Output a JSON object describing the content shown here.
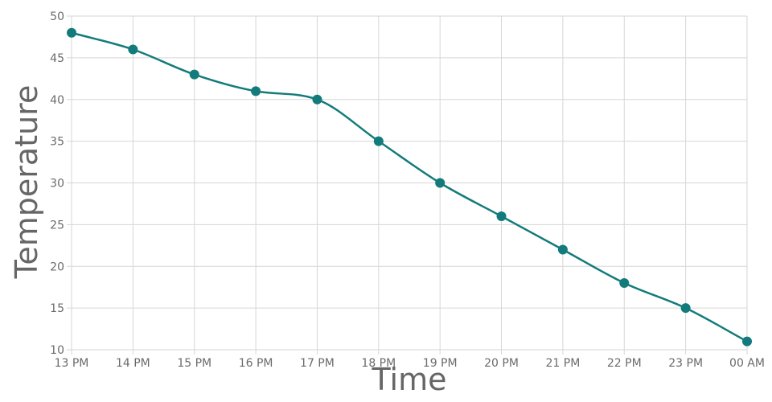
{
  "chart_data": {
    "type": "line",
    "title": "",
    "xlabel": "Time",
    "ylabel": "Temperature",
    "categories": [
      "13 PM",
      "14 PM",
      "15 PM",
      "16 PM",
      "17 PM",
      "18 PM",
      "19 PM",
      "20 PM",
      "21 PM",
      "22 PM",
      "23 PM",
      "00 AM"
    ],
    "series": [
      {
        "values": [
          48,
          46,
          43,
          41,
          40,
          35,
          30,
          26,
          22,
          18,
          15,
          11
        ],
        "color": "#137b7b"
      }
    ],
    "ylim": [
      10,
      50
    ],
    "yticks": [
      10,
      15,
      20,
      25,
      30,
      35,
      40,
      45,
      50
    ],
    "grid": true,
    "smooth": true
  }
}
